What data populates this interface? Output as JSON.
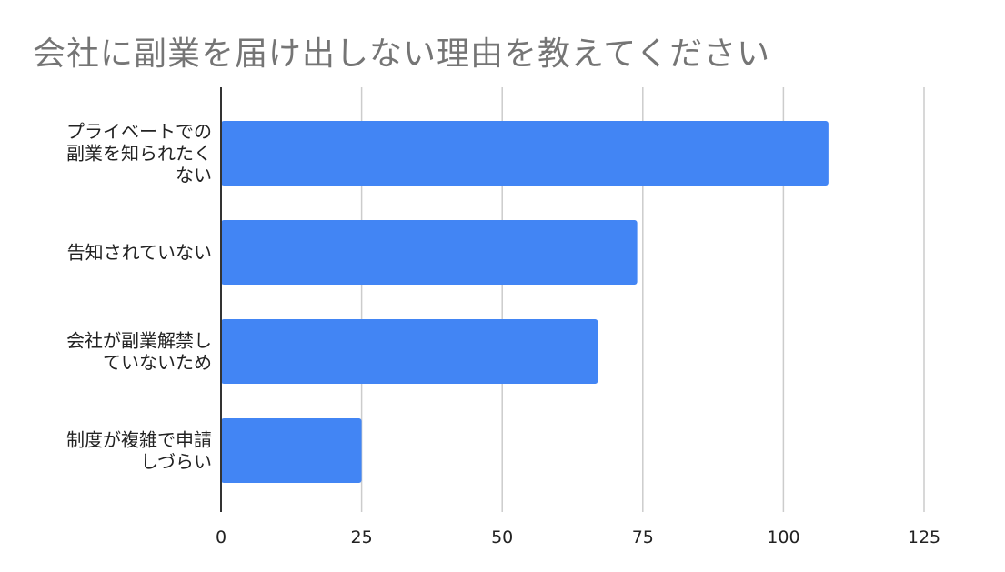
{
  "chart_data": {
    "type": "bar",
    "orientation": "horizontal",
    "title": "会社に副業を届け出しない理由を教えてください",
    "categories": [
      [
        "プライベートでの",
        "副業を知られたく",
        "ない"
      ],
      [
        "告知されていない"
      ],
      [
        "会社が副業解禁し",
        "ていないため"
      ],
      [
        "制度が複雑で申請",
        "しづらい"
      ]
    ],
    "values": [
      108,
      74,
      67,
      25
    ],
    "x_ticks": [
      0,
      25,
      50,
      75,
      100,
      125
    ],
    "xlim": [
      0,
      125
    ],
    "grid": true,
    "legend": "none",
    "bar_color": "#4285f4",
    "grid_color": "#cccccc",
    "axis_color": "#333333"
  }
}
